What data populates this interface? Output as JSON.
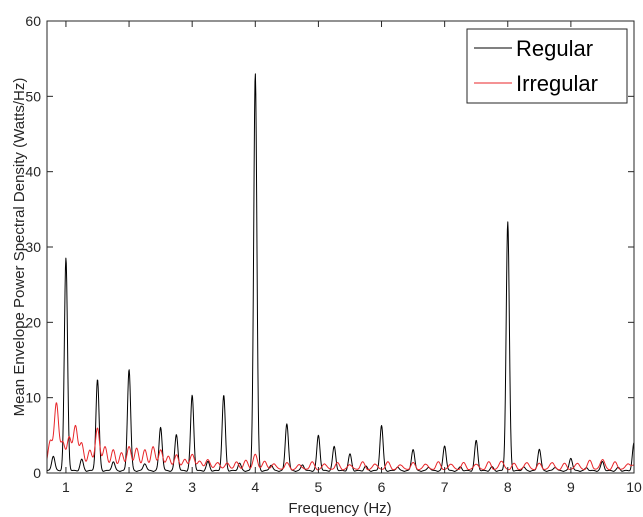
{
  "chart_data": {
    "type": "line",
    "title": "",
    "xlabel": "Frequency (Hz)",
    "ylabel": "Mean Envelope Power Spectral Density (Watts/Hz)",
    "xlim": [
      0.7,
      10
    ],
    "ylim": [
      0,
      60
    ],
    "xticks": [
      1,
      2,
      3,
      4,
      5,
      6,
      7,
      8,
      9,
      10
    ],
    "yticks": [
      0,
      10,
      20,
      30,
      40,
      50,
      60
    ],
    "grid": false,
    "legend_position": "top-right",
    "series": [
      {
        "name": "Regular",
        "color": "#000000",
        "peaks": [
          [
            0.8,
            2.0
          ],
          [
            1.0,
            28.2
          ],
          [
            1.25,
            1.5
          ],
          [
            1.5,
            12.1
          ],
          [
            1.75,
            1.2
          ],
          [
            2.0,
            13.5
          ],
          [
            2.25,
            1.0
          ],
          [
            2.5,
            5.8
          ],
          [
            2.75,
            4.8
          ],
          [
            3.0,
            10.0
          ],
          [
            3.25,
            1.2
          ],
          [
            3.5,
            10.0
          ],
          [
            3.75,
            1.0
          ],
          [
            4.0,
            52.8
          ],
          [
            4.25,
            0.8
          ],
          [
            4.5,
            6.3
          ],
          [
            4.75,
            0.8
          ],
          [
            5.0,
            4.7
          ],
          [
            5.25,
            3.2
          ],
          [
            5.5,
            2.2
          ],
          [
            5.75,
            0.6
          ],
          [
            6.0,
            6.0
          ],
          [
            6.25,
            0.5
          ],
          [
            6.5,
            2.9
          ],
          [
            6.75,
            0.5
          ],
          [
            7.0,
            3.3
          ],
          [
            7.25,
            0.5
          ],
          [
            7.5,
            4.0
          ],
          [
            7.75,
            0.5
          ],
          [
            8.0,
            33.0
          ],
          [
            8.25,
            0.5
          ],
          [
            8.5,
            2.9
          ],
          [
            8.75,
            0.5
          ],
          [
            9.0,
            1.7
          ],
          [
            9.25,
            0.4
          ],
          [
            9.5,
            1.2
          ],
          [
            9.75,
            0.4
          ],
          [
            10.0,
            3.7
          ]
        ]
      },
      {
        "name": "Irregular",
        "color": "#e8262a",
        "peaks": [
          [
            0.75,
            3.8
          ],
          [
            0.85,
            8.8
          ],
          [
            0.95,
            3.5
          ],
          [
            1.05,
            4.2
          ],
          [
            1.15,
            5.8
          ],
          [
            1.25,
            3.5
          ],
          [
            1.38,
            2.6
          ],
          [
            1.5,
            5.5
          ],
          [
            1.62,
            3.0
          ],
          [
            1.75,
            2.6
          ],
          [
            1.88,
            2.2
          ],
          [
            2.0,
            3.0
          ],
          [
            2.12,
            2.8
          ],
          [
            2.25,
            2.6
          ],
          [
            2.38,
            3.0
          ],
          [
            2.5,
            2.6
          ],
          [
            2.62,
            1.8
          ],
          [
            2.75,
            2.0
          ],
          [
            2.88,
            1.4
          ],
          [
            3.0,
            2.1
          ],
          [
            3.12,
            1.2
          ],
          [
            3.25,
            1.4
          ],
          [
            3.4,
            1.0
          ],
          [
            3.55,
            0.9
          ],
          [
            3.7,
            1.0
          ],
          [
            3.85,
            1.2
          ],
          [
            4.0,
            2.0
          ],
          [
            4.15,
            1.1
          ],
          [
            4.3,
            0.8
          ],
          [
            4.5,
            0.9
          ],
          [
            4.7,
            0.7
          ],
          [
            4.9,
            1.0
          ],
          [
            5.1,
            0.8
          ],
          [
            5.3,
            0.9
          ],
          [
            5.5,
            0.7
          ],
          [
            5.7,
            1.0
          ],
          [
            5.9,
            0.8
          ],
          [
            6.1,
            1.0
          ],
          [
            6.3,
            0.7
          ],
          [
            6.5,
            0.9
          ],
          [
            6.7,
            0.8
          ],
          [
            6.9,
            1.0
          ],
          [
            7.1,
            0.8
          ],
          [
            7.3,
            0.9
          ],
          [
            7.5,
            0.8
          ],
          [
            7.7,
            1.0
          ],
          [
            7.9,
            1.2
          ],
          [
            8.1,
            0.8
          ],
          [
            8.3,
            1.0
          ],
          [
            8.5,
            0.8
          ],
          [
            8.7,
            1.0
          ],
          [
            8.9,
            0.8
          ],
          [
            9.1,
            0.9
          ],
          [
            9.3,
            1.2
          ],
          [
            9.5,
            1.4
          ],
          [
            9.7,
            1.0
          ],
          [
            9.9,
            0.8
          ],
          [
            10.0,
            0.6
          ]
        ]
      }
    ]
  }
}
